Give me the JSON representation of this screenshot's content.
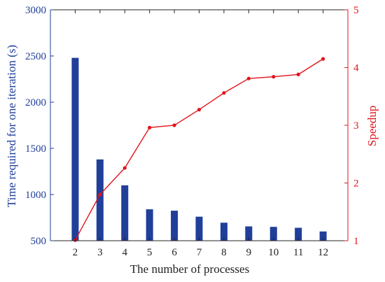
{
  "chart_data": {
    "type": "bar+line",
    "categories": [
      "2",
      "3",
      "4",
      "5",
      "6",
      "7",
      "8",
      "9",
      "10",
      "11",
      "12"
    ],
    "series": [
      {
        "type": "bar",
        "axis": "left",
        "color": "#1f3f99",
        "values": [
          2480,
          1380,
          1100,
          840,
          825,
          760,
          695,
          655,
          650,
          640,
          600
        ]
      },
      {
        "type": "line",
        "axis": "right",
        "color": "#e0141b",
        "values": [
          1.01,
          1.8,
          2.26,
          2.96,
          3.0,
          3.27,
          3.56,
          3.81,
          3.84,
          3.88,
          4.15
        ]
      }
    ],
    "xlabel": "The number of processes",
    "ylabel_left": "Time required for one iteration (s)",
    "ylabel_right": "Speedup",
    "ylim_left": [
      500,
      3000
    ],
    "ylim_right": [
      1,
      5
    ],
    "yticks_left": [
      "500",
      "1000",
      "1500",
      "2000",
      "2500",
      "3000"
    ],
    "yticks_right": [
      "1",
      "2",
      "3",
      "4",
      "5"
    ],
    "left_axis_color": "#1f3f99",
    "right_axis_color": "#e0141b",
    "grid": false
  }
}
